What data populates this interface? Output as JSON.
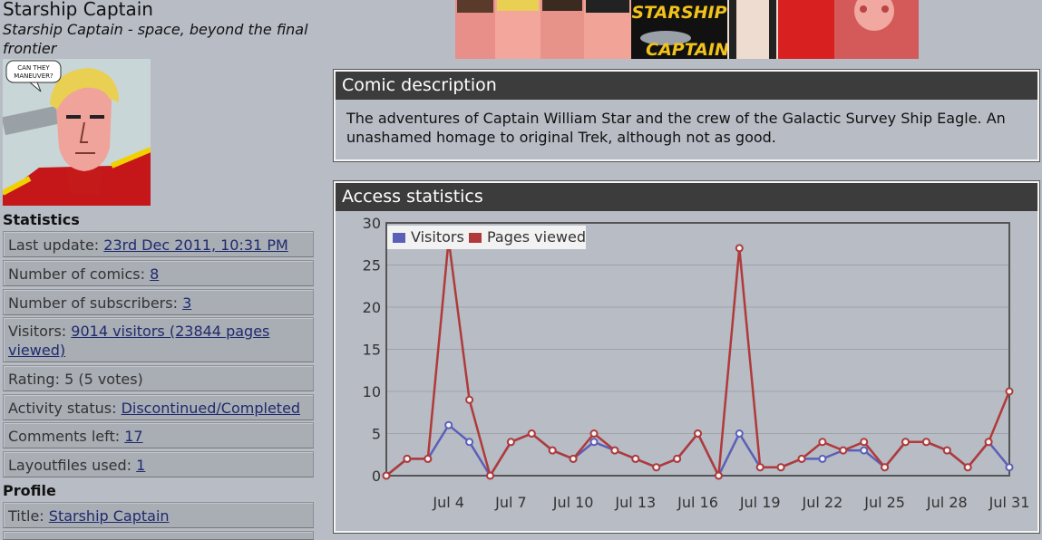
{
  "page": {
    "title": "Starship Captain",
    "subtitle": "Starship Captain - space, beyond the final frontier"
  },
  "thumbnail": {
    "speech": "CAN THEY MANEUVER?"
  },
  "banner": {
    "logo_line1": "STARSHIP",
    "logo_line2": "CAPTAIN"
  },
  "statistics": {
    "heading": "Statistics",
    "last_update_label": "Last update:",
    "last_update_value": "23rd Dec 2011, 10:31 PM",
    "comics_label": "Number of comics:",
    "comics_value": "8",
    "subscribers_label": "Number of subscribers:",
    "subscribers_value": "3",
    "visitors_label": "Visitors:",
    "visitors_value": "9014 visitors (23844 pages viewed)",
    "rating_text": "Rating: 5 (5 votes)",
    "activity_label": "Activity status:",
    "activity_value": "Discontinued/Completed",
    "comments_label": "Comments left:",
    "comments_value": "17",
    "layout_label": "Layoutfiles used:",
    "layout_value": "1"
  },
  "profile": {
    "heading": "Profile",
    "title_label": "Title:",
    "title_value": "Starship Captain"
  },
  "description": {
    "heading": "Comic description",
    "text": "The adventures of Captain William Star and the crew of the Galactic Survey Ship Eagle. An unashamed homage to original Trek, although not as good."
  },
  "access": {
    "heading": "Access statistics"
  },
  "colors": {
    "visitors": "#5b5fb8",
    "pages": "#b03a3a",
    "grid": "#9ea3aa"
  },
  "chart_data": {
    "type": "line",
    "x": [
      "Jul 1",
      "Jul 2",
      "Jul 3",
      "Jul 4",
      "Jul 5",
      "Jul 6",
      "Jul 7",
      "Jul 8",
      "Jul 9",
      "Jul 10",
      "Jul 11",
      "Jul 12",
      "Jul 13",
      "Jul 14",
      "Jul 15",
      "Jul 16",
      "Jul 17",
      "Jul 18",
      "Jul 19",
      "Jul 20",
      "Jul 21",
      "Jul 22",
      "Jul 23",
      "Jul 24",
      "Jul 25",
      "Jul 26",
      "Jul 27",
      "Jul 28",
      "Jul 29",
      "Jul 30",
      "Jul 31"
    ],
    "xticks": [
      "Jul 4",
      "Jul 7",
      "Jul 10",
      "Jul 13",
      "Jul 16",
      "Jul 19",
      "Jul 22",
      "Jul 25",
      "Jul 28",
      "Jul 31"
    ],
    "yticks": [
      0,
      5,
      10,
      15,
      20,
      25,
      30
    ],
    "ylim": [
      0,
      30
    ],
    "legend_position": "top-left",
    "series": [
      {
        "name": "Visitors",
        "values": [
          0,
          2,
          2,
          6,
          4,
          0,
          4,
          5,
          3,
          2,
          4,
          3,
          2,
          1,
          2,
          5,
          0,
          5,
          1,
          1,
          2,
          2,
          3,
          3,
          1,
          4,
          4,
          3,
          1,
          4,
          1
        ]
      },
      {
        "name": "Pages viewed",
        "values": [
          0,
          2,
          2,
          28,
          9,
          0,
          4,
          5,
          3,
          2,
          5,
          3,
          2,
          1,
          2,
          5,
          0,
          27,
          1,
          1,
          2,
          4,
          3,
          4,
          1,
          4,
          4,
          3,
          1,
          4,
          10
        ]
      }
    ]
  }
}
